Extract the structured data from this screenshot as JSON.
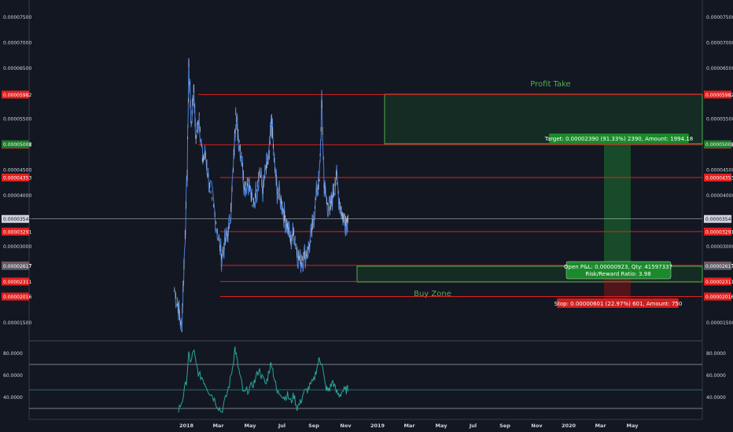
{
  "colors": {
    "background": "#131722",
    "price_line": "#4a7fd4",
    "rsi_line": "#26a69a",
    "level_red": "#e0201e",
    "profit_green": "#1b7a2a",
    "current_price": "#d1d4dc",
    "neutral_tag": "#5d606b"
  },
  "chart_data": [
    {
      "type": "line",
      "title": "",
      "price_axis_ticks": [
        "0.00007500",
        "0.00007000",
        "0.00006500",
        "0.00005500",
        "0.00004500",
        "0.00004000",
        "0.00003000",
        "0.00001500"
      ],
      "time_axis_labels": [
        "2018",
        "Mar",
        "May",
        "Jul",
        "Sep",
        "Nov",
        "2019",
        "Mar",
        "May",
        "Jul",
        "Sep",
        "Nov",
        "2020",
        "Mar",
        "May"
      ],
      "ylim": [
        1.22e-05,
        7.77e-05
      ],
      "x_months": [
        0,
        1,
        2,
        3,
        4,
        5,
        6,
        7,
        8,
        9,
        10,
        11,
        12,
        13,
        14,
        15,
        16,
        17,
        18,
        19,
        20,
        21,
        22,
        23,
        24,
        25,
        26,
        27,
        28
      ],
      "series": [
        {
          "approx_points": [
            [
              -0.75,
              2.15e-05
            ],
            [
              -0.5,
              1.8e-05
            ],
            [
              -0.3,
              1.35e-05
            ],
            [
              -0.15,
              2.65e-05
            ],
            [
              0.05,
              4.4e-05
            ],
            [
              0.15,
              6.6e-05
            ],
            [
              0.3,
              5.4e-05
            ],
            [
              0.45,
              6.1e-05
            ],
            [
              0.6,
              5.1e-05
            ],
            [
              0.8,
              5.6e-05
            ],
            [
              1.0,
              4.7e-05
            ],
            [
              1.2,
              4.8e-05
            ],
            [
              1.45,
              4.2e-05
            ],
            [
              1.7,
              3.8e-05
            ],
            [
              1.95,
              3.3e-05
            ],
            [
              2.2,
              2.8e-05
            ],
            [
              2.45,
              3.1e-05
            ],
            [
              2.7,
              3.4e-05
            ],
            [
              2.95,
              4.5e-05
            ],
            [
              3.1,
              5.65e-05
            ],
            [
              3.25,
              5.2e-05
            ],
            [
              3.45,
              4.8e-05
            ],
            [
              3.65,
              4.2e-05
            ],
            [
              3.9,
              4.3e-05
            ],
            [
              4.15,
              3.8e-05
            ],
            [
              4.4,
              4.1e-05
            ],
            [
              4.6,
              4.5e-05
            ],
            [
              4.8,
              4.1e-05
            ],
            [
              5.0,
              4.5e-05
            ],
            [
              5.2,
              4.8e-05
            ],
            [
              5.35,
              5.5e-05
            ],
            [
              5.5,
              4.7e-05
            ],
            [
              5.7,
              4.1e-05
            ],
            [
              5.95,
              3.9e-05
            ],
            [
              6.15,
              3.6e-05
            ],
            [
              6.35,
              3.4e-05
            ],
            [
              6.55,
              3.1e-05
            ],
            [
              6.75,
              3.3e-05
            ],
            [
              6.95,
              2.9e-05
            ],
            [
              7.15,
              2.7e-05
            ],
            [
              7.35,
              2.8e-05
            ],
            [
              7.6,
              2.9e-05
            ],
            [
              7.8,
              3.1e-05
            ],
            [
              8.0,
              3.6e-05
            ],
            [
              8.2,
              4.1e-05
            ],
            [
              8.35,
              4.3e-05
            ],
            [
              8.5,
              5.8e-05
            ],
            [
              8.65,
              4.2e-05
            ],
            [
              8.8,
              3.9e-05
            ],
            [
              9.0,
              3.7e-05
            ],
            [
              9.2,
              4e-05
            ],
            [
              9.4,
              4.4e-05
            ],
            [
              9.6,
              3.9e-05
            ],
            [
              9.8,
              3.6e-05
            ],
            [
              10.0,
              3.5e-05
            ],
            [
              10.15,
              3.54e-05
            ]
          ]
        }
      ],
      "levels": [
        {
          "price": "0.00005982",
          "style": "red"
        },
        {
          "price": "0.00004998",
          "style": "red"
        },
        {
          "price": "0.00005007",
          "style": "green"
        },
        {
          "price": "0.00004353",
          "style": "red"
        },
        {
          "price": "0.00003540",
          "style": "current"
        },
        {
          "price": "0.00003291",
          "style": "red"
        },
        {
          "price": "0.00002627",
          "style": "red"
        },
        {
          "price": "0.00002617",
          "style": "neutral"
        },
        {
          "price": "0.00002311",
          "style": "red"
        },
        {
          "price": "0.00002016",
          "style": "red"
        }
      ],
      "annotations": {
        "profit_take": "Profit Take",
        "buy_zone": "Buy Zone",
        "target_text": "Target: 0.00002390 (91.33%) 2390, Amount: 1994.18",
        "open_pnl_line1": "Open P&L: 0.00000923, Qty: 41597337",
        "open_pnl_line2": "Risk/Reward Ratio: 3.98",
        "stop_text": "Stop: 0.00000601 (22.97%) 601, Amount: 750"
      }
    },
    {
      "type": "line",
      "title": "",
      "ticks": [
        "80.0000",
        "60.0000",
        "40.0000"
      ],
      "ylim": [
        20,
        90
      ],
      "guides": [
        70,
        47,
        30
      ],
      "series": [
        {
          "approx_points": [
            [
              -0.5,
              28
            ],
            [
              -0.25,
              38
            ],
            [
              0.0,
              55
            ],
            [
              0.15,
              78
            ],
            [
              0.3,
              72
            ],
            [
              0.45,
              84
            ],
            [
              0.6,
              70
            ],
            [
              0.8,
              60
            ],
            [
              1.0,
              58
            ],
            [
              1.2,
              52
            ],
            [
              1.45,
              45
            ],
            [
              1.7,
              40
            ],
            [
              1.95,
              33
            ],
            [
              2.2,
              27
            ],
            [
              2.45,
              38
            ],
            [
              2.7,
              52
            ],
            [
              2.9,
              68
            ],
            [
              3.05,
              85
            ],
            [
              3.2,
              72
            ],
            [
              3.4,
              57
            ],
            [
              3.6,
              43
            ],
            [
              3.85,
              47
            ],
            [
              4.1,
              50
            ],
            [
              4.3,
              55
            ],
            [
              4.55,
              66
            ],
            [
              4.75,
              58
            ],
            [
              5.0,
              52
            ],
            [
              5.2,
              65
            ],
            [
              5.35,
              72
            ],
            [
              5.5,
              59
            ],
            [
              5.7,
              44
            ],
            [
              5.95,
              44
            ],
            [
              6.15,
              40
            ],
            [
              6.35,
              42
            ],
            [
              6.55,
              36
            ],
            [
              6.75,
              42
            ],
            [
              6.95,
              31
            ],
            [
              7.15,
              35
            ],
            [
              7.35,
              44
            ],
            [
              7.55,
              46
            ],
            [
              7.75,
              50
            ],
            [
              8.0,
              55
            ],
            [
              8.2,
              68
            ],
            [
              8.35,
              75
            ],
            [
              8.5,
              72
            ],
            [
              8.7,
              52
            ],
            [
              8.85,
              46
            ],
            [
              9.0,
              48
            ],
            [
              9.2,
              55
            ],
            [
              9.4,
              45
            ],
            [
              9.6,
              42
            ],
            [
              9.8,
              46
            ],
            [
              10.0,
              46
            ],
            [
              10.15,
              48
            ]
          ]
        }
      ]
    }
  ]
}
